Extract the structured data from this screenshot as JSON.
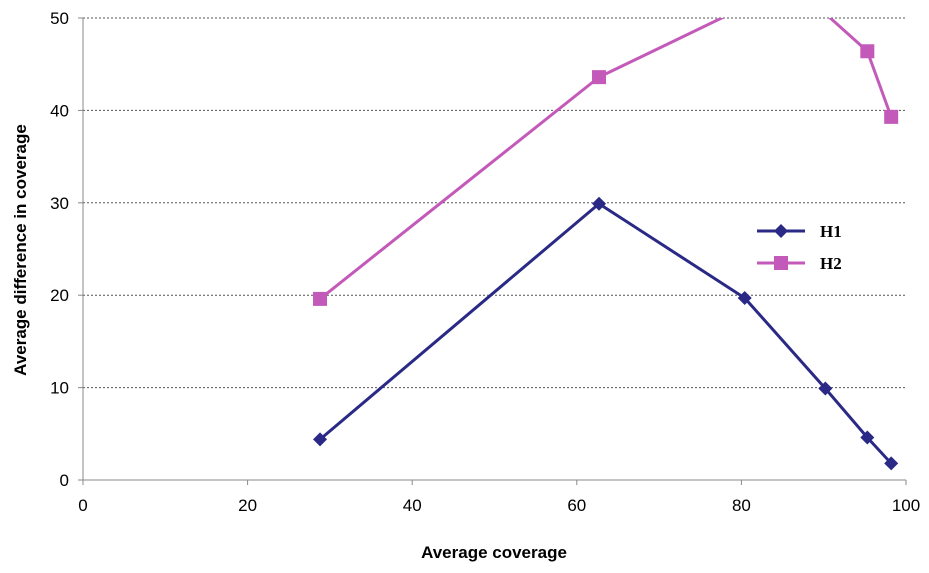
{
  "chart_data": {
    "type": "line",
    "title": "",
    "xlabel": "Average coverage",
    "ylabel": "Average difference in coverage",
    "xlim": [
      0,
      100
    ],
    "ylim": [
      0,
      50
    ],
    "x_ticks": [
      "0",
      "20",
      "40",
      "60",
      "80",
      "100"
    ],
    "y_ticks": [
      "0",
      "10",
      "20",
      "30",
      "40",
      "50"
    ],
    "grid": "horizontal-dotted",
    "legend_position": "right",
    "series": [
      {
        "name": "H1",
        "color": "#2a2a86",
        "marker": "diamond",
        "points": [
          [
            28.8,
            4.4
          ],
          [
            62.7,
            29.9
          ],
          [
            80.4,
            19.7
          ],
          [
            90.2,
            9.9
          ],
          [
            95.3,
            4.6
          ],
          [
            98.2,
            1.8
          ]
        ]
      },
      {
        "name": "H2",
        "color": "#c35ab9",
        "marker": "square",
        "points": [
          [
            28.8,
            19.6
          ],
          [
            62.7,
            43.6
          ],
          [
            80.4,
            51.2
          ],
          [
            89.3,
            51.2
          ],
          [
            95.3,
            46.4
          ],
          [
            98.2,
            39.3
          ]
        ]
      }
    ]
  }
}
